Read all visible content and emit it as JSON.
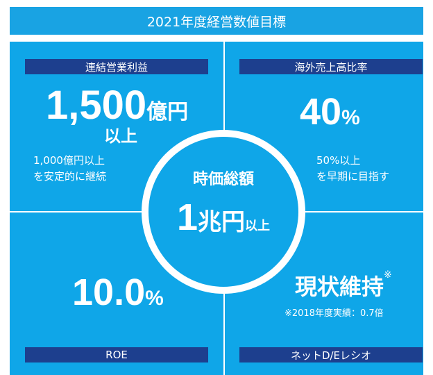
{
  "title": "2021年度経営数値目標",
  "quadrants": [
    {
      "label": "連結営業利益",
      "value": "1,500",
      "unit": "億円",
      "suffix": "以上",
      "notes": [
        "1,000億円以上",
        "を安定的に継続"
      ]
    },
    {
      "label": "海外売上高比率",
      "value": "40",
      "unit": "%",
      "notes": [
        "50%以上",
        "を早期に目指す"
      ]
    },
    {
      "label": "ROE",
      "value": "10.0",
      "unit": "%"
    },
    {
      "label": "ネットD/Eレシオ",
      "value": "現状維持",
      "unit": "※",
      "notes": [
        "※2018年度実績：0.7倍"
      ]
    }
  ],
  "center": {
    "label": "時価総額",
    "value": "1",
    "unit": "兆円",
    "suffix": "以上"
  }
}
